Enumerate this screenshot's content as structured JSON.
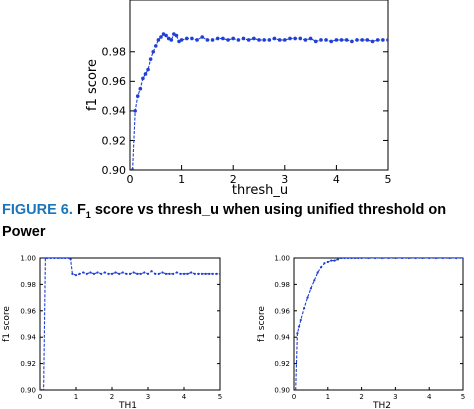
{
  "caption": {
    "label": "FIGURE 6.",
    "text_main": "F",
    "text_sub": "1",
    "text_rest": " score vs thresh_u when using unified threshold on Power"
  },
  "chart_data": [
    {
      "type": "line",
      "xlabel": "thresh_u",
      "ylabel": "f1 score",
      "xlim": [
        0,
        5
      ],
      "ylim": [
        0.9,
        0.99
      ],
      "xticks": [
        "0",
        "1",
        "2",
        "3",
        "4",
        "5"
      ],
      "yticks": [
        "0.90",
        "0.92",
        "0.94",
        "0.96",
        "0.98"
      ],
      "color": "#1f3fd6",
      "x": [
        0.05,
        0.1,
        0.15,
        0.2,
        0.25,
        0.3,
        0.35,
        0.4,
        0.45,
        0.5,
        0.55,
        0.6,
        0.65,
        0.7,
        0.75,
        0.8,
        0.85,
        0.9,
        0.95,
        1.0,
        1.1,
        1.2,
        1.3,
        1.4,
        1.5,
        1.6,
        1.7,
        1.8,
        1.9,
        2.0,
        2.1,
        2.2,
        2.3,
        2.4,
        2.5,
        2.6,
        2.7,
        2.8,
        2.9,
        3.0,
        3.1,
        3.2,
        3.3,
        3.4,
        3.5,
        3.6,
        3.7,
        3.8,
        3.9,
        4.0,
        4.1,
        4.2,
        4.3,
        4.4,
        4.5,
        4.6,
        4.7,
        4.8,
        4.9,
        5.0
      ],
      "y": [
        0.9,
        0.94,
        0.95,
        0.955,
        0.962,
        0.965,
        0.968,
        0.975,
        0.98,
        0.984,
        0.988,
        0.99,
        0.992,
        0.991,
        0.989,
        0.988,
        0.992,
        0.991,
        0.987,
        0.988,
        0.989,
        0.989,
        0.988,
        0.99,
        0.988,
        0.988,
        0.989,
        0.989,
        0.988,
        0.989,
        0.988,
        0.989,
        0.988,
        0.989,
        0.988,
        0.988,
        0.988,
        0.989,
        0.988,
        0.988,
        0.989,
        0.989,
        0.989,
        0.988,
        0.989,
        0.987,
        0.988,
        0.988,
        0.987,
        0.988,
        0.988,
        0.988,
        0.987,
        0.988,
        0.988,
        0.988,
        0.987,
        0.988,
        0.988,
        0.988
      ]
    },
    {
      "type": "line",
      "xlabel": "TH1",
      "ylabel": "f1 score",
      "xlim": [
        0,
        5
      ],
      "ylim": [
        0.9,
        1.0
      ],
      "xticks": [
        "0",
        "1",
        "2",
        "3",
        "4",
        "5"
      ],
      "yticks": [
        "0.90",
        "0.92",
        "0.94",
        "0.96",
        "0.98",
        "1.00"
      ],
      "color": "#1f3fd6",
      "x": [
        0.05,
        0.1,
        0.15,
        0.2,
        0.3,
        0.4,
        0.5,
        0.6,
        0.7,
        0.8,
        0.85,
        0.9,
        1.0,
        1.1,
        1.2,
        1.3,
        1.4,
        1.5,
        1.6,
        1.7,
        1.8,
        1.9,
        2.0,
        2.1,
        2.2,
        2.3,
        2.4,
        2.5,
        2.6,
        2.7,
        2.8,
        2.9,
        3.0,
        3.1,
        3.2,
        3.3,
        3.4,
        3.5,
        3.6,
        3.7,
        3.8,
        3.9,
        4.0,
        4.1,
        4.2,
        4.3,
        4.4,
        4.5,
        4.6,
        4.7,
        4.8,
        4.9,
        5.0
      ],
      "y": [
        0.9,
        0.9,
        1.0,
        1.0,
        1.0,
        1.0,
        1.0,
        1.0,
        1.0,
        1.0,
        0.999,
        0.988,
        0.987,
        0.988,
        0.989,
        0.988,
        0.989,
        0.988,
        0.989,
        0.988,
        0.989,
        0.988,
        0.988,
        0.989,
        0.988,
        0.989,
        0.988,
        0.988,
        0.989,
        0.988,
        0.988,
        0.989,
        0.988,
        0.99,
        0.988,
        0.988,
        0.989,
        0.988,
        0.988,
        0.988,
        0.989,
        0.988,
        0.988,
        0.988,
        0.989,
        0.988,
        0.988,
        0.988,
        0.988,
        0.988,
        0.988,
        0.988,
        0.988
      ]
    },
    {
      "type": "line",
      "xlabel": "TH2",
      "ylabel": "f1 score",
      "xlim": [
        0,
        5
      ],
      "ylim": [
        0.9,
        1.0
      ],
      "xticks": [
        "0",
        "1",
        "2",
        "3",
        "4",
        "5"
      ],
      "yticks": [
        "0.90",
        "0.92",
        "0.94",
        "0.96",
        "0.98",
        "1.00"
      ],
      "color": "#1f3fd6",
      "x": [
        0.05,
        0.1,
        0.15,
        0.2,
        0.3,
        0.4,
        0.5,
        0.6,
        0.7,
        0.8,
        0.9,
        1.0,
        1.1,
        1.2,
        1.3,
        1.4,
        1.5,
        1.6,
        1.7,
        1.8,
        1.9,
        2.0,
        2.2,
        2.4,
        2.6,
        2.8,
        3.0,
        3.2,
        3.4,
        3.6,
        3.8,
        4.0,
        4.2,
        4.4,
        4.6,
        4.8,
        5.0
      ],
      "y": [
        0.9,
        0.943,
        0.948,
        0.953,
        0.962,
        0.97,
        0.977,
        0.983,
        0.989,
        0.993,
        0.996,
        0.997,
        0.998,
        0.998,
        0.999,
        1.0,
        1.0,
        1.0,
        1.0,
        1.0,
        1.0,
        1.0,
        1.0,
        1.0,
        1.0,
        1.0,
        1.0,
        1.0,
        1.0,
        1.0,
        1.0,
        1.0,
        1.0,
        1.0,
        1.0,
        1.0,
        1.0
      ]
    }
  ]
}
